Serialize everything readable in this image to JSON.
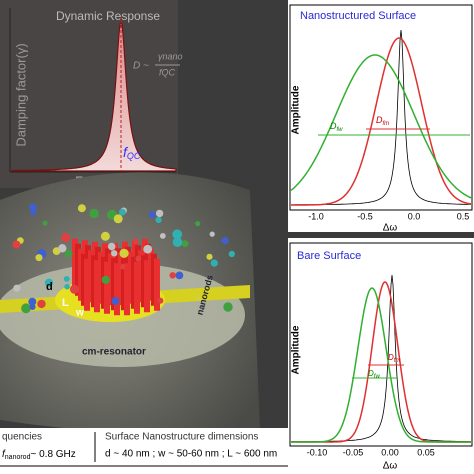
{
  "dynamic_response": {
    "title": "Dynamic Response",
    "y_label": "Damping factor(γ)",
    "x_label": "Freq (MHz)",
    "formula_lhs": "D ~",
    "formula_num": "γnano",
    "formula_den": "fQC",
    "peak_label": "f",
    "peak_sub": "QC"
  },
  "nanostructured": {
    "title": "Nanostructured Surface",
    "y_label": "Amplitude",
    "x_label": "Δω",
    "xticks": [
      "-1.0",
      "-0.5",
      "0.0",
      "0.5"
    ],
    "label_fw": "D",
    "label_fw_sub": "fw",
    "label_fm": "D",
    "label_fm_sub": "fm"
  },
  "bare": {
    "title": "Bare Surface",
    "y_label": "Amplitude",
    "x_label": "Δω",
    "xticks": [
      "-0.10",
      "-0.05",
      "0.00",
      "0.05"
    ],
    "label_fw": "D",
    "label_fw_sub": "fw",
    "label_fm": "D",
    "label_fm_sub": "fm"
  },
  "resonator": {
    "d": "d",
    "L": "L",
    "w": "w",
    "resonator_label": "cm-resonator",
    "nanorods_label": "nanorods"
  },
  "footer": {
    "left": "quencies",
    "f": "f",
    "f_sub": "nanorod",
    "f_value": "~ 0.8 GHz",
    "dims_title": "Surface Nanostructure dimensions",
    "dims": "d ~ 40 nm ; w ~ 50-60 nm ; L ~ 600 nm"
  }
}
